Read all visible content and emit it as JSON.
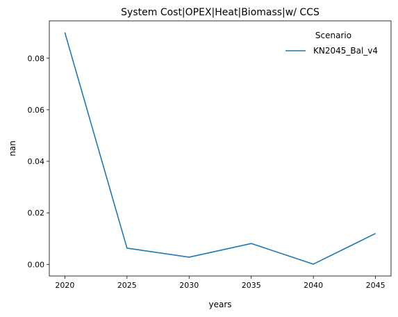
{
  "chart_data": {
    "type": "line",
    "title": "System Cost|OPEX|Heat|Biomass|w/ CCS",
    "xlabel": "years",
    "ylabel": "nan",
    "x": [
      2020,
      2025,
      2030,
      2035,
      2040,
      2045
    ],
    "xticks": [
      "2020",
      "2025",
      "2030",
      "2035",
      "2040",
      "2045"
    ],
    "yticks": [
      "0.00",
      "0.02",
      "0.04",
      "0.06",
      "0.08"
    ],
    "ylim": [
      -0.0045,
      0.0945
    ],
    "xlim": [
      2018.75,
      2046.25
    ],
    "series": [
      {
        "name": "KN2045_Bal_v4",
        "color": "#1f77b4",
        "values": [
          0.09,
          0.0063,
          0.0028,
          0.0081,
          0.0001,
          0.012
        ]
      }
    ],
    "legend": {
      "title": "Scenario",
      "placement": "top-right"
    },
    "grid": false
  }
}
